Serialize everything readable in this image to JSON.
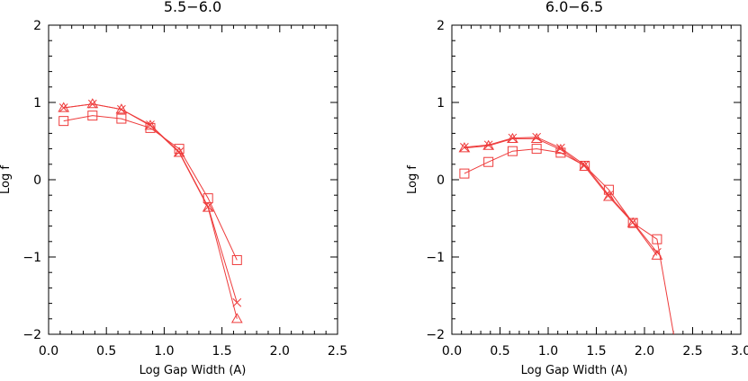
{
  "chart_data": [
    {
      "type": "line",
      "title": "5.5−6.0",
      "xlabel": "Log Gap Width (A)",
      "ylabel": "Log f",
      "xlim": [
        0.0,
        2.5
      ],
      "ylim": [
        -2.0,
        2.0
      ],
      "xticks": [
        "0.0",
        "0.5",
        "1.0",
        "1.5",
        "2.0",
        "2.5"
      ],
      "yticks": [
        "−2",
        "−1",
        "0",
        "1",
        "2"
      ],
      "xtick_values": [
        0.0,
        0.5,
        1.0,
        1.5,
        2.0,
        2.5
      ],
      "ytick_values": [
        -2,
        -1,
        0,
        1,
        2
      ],
      "series_color": "#ee3b3b",
      "series": [
        {
          "marker": "triangle",
          "x": [
            0.13,
            0.38,
            0.63,
            0.88,
            1.13,
            1.38,
            1.63
          ],
          "y": [
            0.93,
            0.98,
            0.91,
            0.7,
            0.35,
            -0.36,
            -1.8
          ]
        },
        {
          "marker": "cross",
          "x": [
            0.13,
            0.38,
            0.63,
            0.88,
            1.13,
            1.38,
            1.63
          ],
          "y": [
            0.93,
            0.98,
            0.91,
            0.71,
            0.36,
            -0.35,
            -1.59
          ]
        },
        {
          "marker": "square",
          "x": [
            0.13,
            0.38,
            0.63,
            0.88,
            1.13,
            1.38,
            1.63
          ],
          "y": [
            0.76,
            0.83,
            0.79,
            0.67,
            0.4,
            -0.24,
            -1.04
          ]
        }
      ]
    },
    {
      "type": "line",
      "title": "6.0−6.5",
      "xlabel": "Log Gap Width (A)",
      "ylabel": "Log f",
      "xlim": [
        0.0,
        3.0
      ],
      "ylim": [
        -2.0,
        2.0
      ],
      "xticks": [
        "0.0",
        "0.5",
        "1.0",
        "1.5",
        "2.0",
        "2.5",
        "3.0"
      ],
      "yticks": [
        "−2",
        "−1",
        "0",
        "1",
        "2"
      ],
      "xtick_values": [
        0.0,
        0.5,
        1.0,
        1.5,
        2.0,
        2.5,
        3.0
      ],
      "ytick_values": [
        -2,
        -1,
        0,
        1,
        2
      ],
      "series_color": "#ee3b3b",
      "series": [
        {
          "marker": "triangle",
          "x": [
            0.13,
            0.38,
            0.63,
            0.88,
            1.13,
            1.38,
            1.63,
            1.88,
            2.13
          ],
          "y": [
            0.41,
            0.44,
            0.53,
            0.53,
            0.39,
            0.17,
            -0.22,
            -0.56,
            -0.98
          ]
        },
        {
          "marker": "cross",
          "x": [
            0.13,
            0.38,
            0.63,
            0.88,
            1.13,
            1.38,
            1.63,
            1.88,
            2.13
          ],
          "y": [
            0.42,
            0.45,
            0.54,
            0.55,
            0.41,
            0.19,
            -0.2,
            -0.55,
            -0.94
          ]
        },
        {
          "marker": "square",
          "x": [
            0.13,
            0.38,
            0.63,
            0.88,
            1.13,
            1.38,
            1.63,
            1.88,
            2.13,
            2.38
          ],
          "y": [
            0.08,
            0.23,
            0.37,
            0.4,
            0.35,
            0.18,
            -0.13,
            -0.56,
            -0.77,
            -2.55
          ]
        }
      ]
    }
  ]
}
